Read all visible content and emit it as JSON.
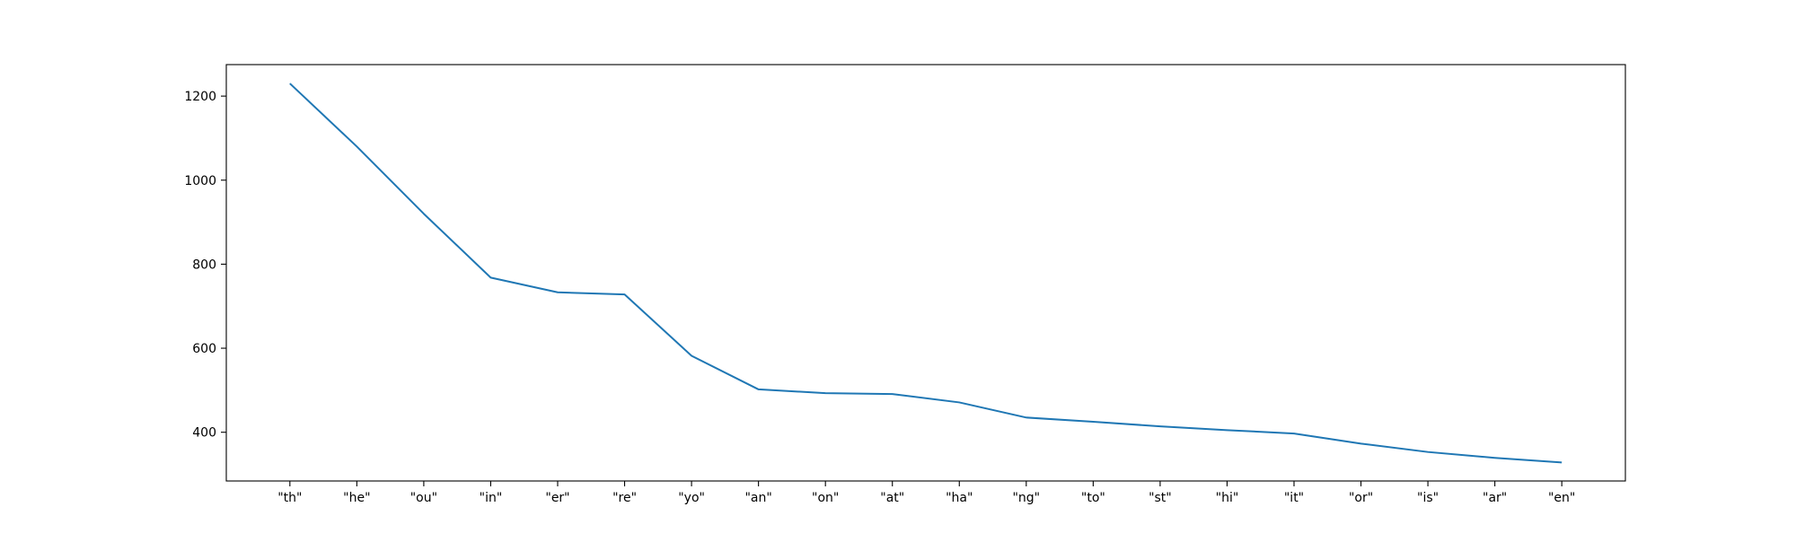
{
  "chart_data": {
    "type": "line",
    "title": "",
    "xlabel": "",
    "ylabel": "",
    "categories": [
      "\"th\"",
      "\"he\"",
      "\"ou\"",
      "\"in\"",
      "\"er\"",
      "\"re\"",
      "\"yo\"",
      "\"an\"",
      "\"on\"",
      "\"at\"",
      "\"ha\"",
      "\"ng\"",
      "\"to\"",
      "\"st\"",
      "\"hi\"",
      "\"it\"",
      "\"or\"",
      "\"is\"",
      "\"ar\"",
      "\"en\""
    ],
    "series": [
      {
        "values": [
          1230,
          1080,
          920,
          768,
          733,
          728,
          582,
          502,
          493,
          491,
          471,
          435,
          425,
          414,
          405,
          397,
          373,
          353,
          339,
          328
        ],
        "color": "#1f77b4"
      }
    ],
    "ylim": [
      284,
      1275
    ],
    "yticks": [
      400,
      600,
      800,
      1000,
      1200
    ],
    "grid": false,
    "legend": "none"
  }
}
